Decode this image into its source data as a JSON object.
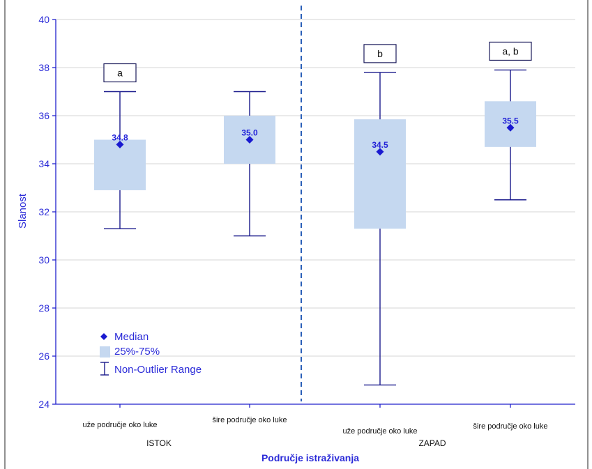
{
  "chart_data": {
    "type": "boxplot",
    "xlabel": "Područje istraživanja",
    "ylabel": "Slanost",
    "ylim": [
      24,
      40
    ],
    "yticks": [
      24,
      26,
      28,
      30,
      32,
      34,
      36,
      38,
      40
    ],
    "grid": true,
    "legend_placement": "bottom-left",
    "groups": [
      {
        "label": "ISTOK",
        "category_count": 2
      },
      {
        "label": "ZAPAD",
        "category_count": 2
      }
    ],
    "categories": [
      "uže područje oko luke",
      "šire područje oko luke",
      "uže područje oko luke",
      "šire područje oko luke"
    ],
    "boxes": [
      {
        "group": "ISTOK",
        "median": 34.8,
        "median_label": "34.8",
        "q1": 32.9,
        "q3": 35.0,
        "min": 31.3,
        "max": 37.0,
        "sig": "a"
      },
      {
        "group": "ISTOK",
        "median": 35.0,
        "median_label": "35.0",
        "q1": 34.0,
        "q3": 36.0,
        "min": 31.0,
        "max": 37.0,
        "sig": ""
      },
      {
        "group": "ZAPAD",
        "median": 34.5,
        "median_label": "34.5",
        "q1": 31.3,
        "q3": 35.85,
        "min": 24.8,
        "max": 37.8,
        "sig": "b"
      },
      {
        "group": "ZAPAD",
        "median": 35.5,
        "median_label": "35.5",
        "q1": 34.7,
        "q3": 36.6,
        "min": 32.5,
        "max": 37.9,
        "sig": "a, b"
      }
    ],
    "legend": [
      {
        "symbol": "diamond",
        "label": "Median"
      },
      {
        "symbol": "box",
        "label": "25%-75%"
      },
      {
        "symbol": "whisker",
        "label": "Non-Outlier Range"
      }
    ],
    "colors": {
      "box_fill": "#c5d8f0",
      "whisker": "#1a1a8c",
      "median": "#1a1ad0",
      "axis_text": "#2b2bd8",
      "divider": "#2a5fb8"
    }
  }
}
